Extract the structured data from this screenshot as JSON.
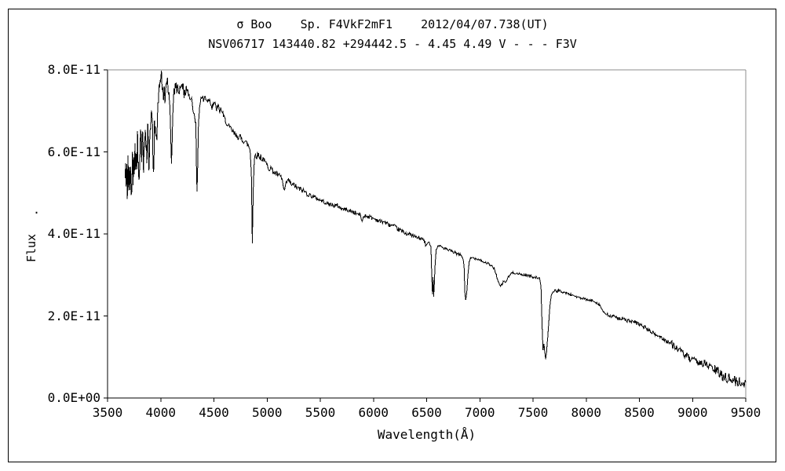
{
  "chart_data": {
    "type": "line",
    "title_line1": "σ Boo    Sp. F4VkF2mF1    2012/04/07.738(UT)",
    "title_line2": "NSV06717 143440.82 +294442.5 - 4.45 4.49 V - - - F3V",
    "xlabel": "Wavelength(Å)",
    "ylabel": "Flux",
    "ylabel_dot": ".",
    "xlim": [
      3500,
      9500
    ],
    "ylim": [
      0,
      8
    ],
    "grid": false,
    "legend": "none",
    "line_color": "#000000",
    "frame_color": "#000000",
    "frame_light_color": "#8c8c8c",
    "background_color": "#ffffff",
    "x_ticks": [
      {
        "value": 3500,
        "label": "3500"
      },
      {
        "value": 4000,
        "label": "4000"
      },
      {
        "value": 4500,
        "label": "4500"
      },
      {
        "value": 5000,
        "label": "5000"
      },
      {
        "value": 5500,
        "label": "5500"
      },
      {
        "value": 6000,
        "label": "6000"
      },
      {
        "value": 6500,
        "label": "6500"
      },
      {
        "value": 7000,
        "label": "7000"
      },
      {
        "value": 7500,
        "label": "7500"
      },
      {
        "value": 8000,
        "label": "8000"
      },
      {
        "value": 8500,
        "label": "8500"
      },
      {
        "value": 9000,
        "label": "9000"
      },
      {
        "value": 9500,
        "label": "9500"
      }
    ],
    "y_ticks": [
      {
        "value": 0,
        "label": "0.0E+00"
      },
      {
        "value": 2,
        "label": "2.0E-11"
      },
      {
        "value": 4,
        "label": "4.0E-11"
      },
      {
        "value": 6,
        "label": "6.0E-11"
      },
      {
        "value": 8,
        "label": "8.0E-11"
      }
    ],
    "noise_bands": [
      {
        "from": 3660,
        "to": 3965,
        "amp": 0.3
      },
      {
        "from": 3965,
        "to": 4350,
        "amp": 0.12
      },
      {
        "from": 4350,
        "to": 4900,
        "amp": 0.08
      },
      {
        "from": 4900,
        "to": 5400,
        "amp": 0.07
      },
      {
        "from": 5400,
        "to": 6500,
        "amp": 0.05
      },
      {
        "from": 6500,
        "to": 7600,
        "amp": 0.03
      },
      {
        "from": 7600,
        "to": 8200,
        "amp": 0.03
      },
      {
        "from": 8200,
        "to": 8800,
        "amp": 0.05
      },
      {
        "from": 8800,
        "to": 9200,
        "amp": 0.09
      },
      {
        "from": 9200,
        "to": 9505,
        "amp": 0.13
      }
    ],
    "spectrum_units": {
      "x": "Angstrom",
      "y": "flux x 1e-11"
    },
    "spectrum": [
      [
        3665,
        5.3
      ],
      [
        3670,
        5.75
      ],
      [
        3675,
        4.95
      ],
      [
        3680,
        5.6
      ],
      [
        3686,
        5.05
      ],
      [
        3692,
        5.9
      ],
      [
        3698,
        5.2
      ],
      [
        3704,
        5.55
      ],
      [
        3710,
        4.85
      ],
      [
        3716,
        5.65
      ],
      [
        3722,
        5.1
      ],
      [
        3728,
        4.8
      ],
      [
        3734,
        5.85
      ],
      [
        3740,
        5.3
      ],
      [
        3746,
        6.05
      ],
      [
        3752,
        5.45
      ],
      [
        3758,
        6.1
      ],
      [
        3764,
        5.5
      ],
      [
        3770,
        6.25
      ],
      [
        3776,
        5.6
      ],
      [
        3782,
        6.3
      ],
      [
        3790,
        5.7
      ],
      [
        3798,
        5.5
      ],
      [
        3806,
        6.3
      ],
      [
        3814,
        6.45
      ],
      [
        3822,
        5.95
      ],
      [
        3830,
        6.5
      ],
      [
        3838,
        5.6
      ],
      [
        3846,
        6.35
      ],
      [
        3854,
        6.5
      ],
      [
        3862,
        6.25
      ],
      [
        3870,
        5.9
      ],
      [
        3878,
        6.55
      ],
      [
        3889,
        5.55
      ],
      [
        3898,
        6.6
      ],
      [
        3906,
        6.8
      ],
      [
        3914,
        6.9
      ],
      [
        3922,
        6.55
      ],
      [
        3933,
        5.25
      ],
      [
        3941,
        6.5
      ],
      [
        3949,
        6.85
      ],
      [
        3957,
        6.5
      ],
      [
        3964,
        6.3
      ],
      [
        3970,
        6.9
      ],
      [
        3978,
        7.3
      ],
      [
        3986,
        7.55
      ],
      [
        3994,
        7.7
      ],
      [
        4002,
        7.85
      ],
      [
        4007,
        7.9
      ],
      [
        4013,
        7.6
      ],
      [
        4020,
        7.45
      ],
      [
        4026,
        7.25
      ],
      [
        4033,
        7.5
      ],
      [
        4040,
        7.2
      ],
      [
        4048,
        7.6
      ],
      [
        4056,
        7.7
      ],
      [
        4063,
        7.75
      ],
      [
        4070,
        7.5
      ],
      [
        4078,
        7.35
      ],
      [
        4086,
        7.0
      ],
      [
        4094,
        6.4
      ],
      [
        4101,
        5.7
      ],
      [
        4109,
        6.5
      ],
      [
        4117,
        7.15
      ],
      [
        4125,
        7.45
      ],
      [
        4133,
        7.55
      ],
      [
        4141,
        7.65
      ],
      [
        4150,
        7.5
      ],
      [
        4160,
        7.6
      ],
      [
        4170,
        7.45
      ],
      [
        4180,
        7.55
      ],
      [
        4190,
        7.65
      ],
      [
        4200,
        7.55
      ],
      [
        4210,
        7.6
      ],
      [
        4220,
        7.4
      ],
      [
        4230,
        7.45
      ],
      [
        4240,
        7.55
      ],
      [
        4250,
        7.4
      ],
      [
        4260,
        7.45
      ],
      [
        4272,
        7.3
      ],
      [
        4284,
        7.4
      ],
      [
        4296,
        7.15
      ],
      [
        4308,
        7.0
      ],
      [
        4320,
        6.95
      ],
      [
        4330,
        6.6
      ],
      [
        4336,
        5.6
      ],
      [
        4341,
        4.92
      ],
      [
        4347,
        5.7
      ],
      [
        4355,
        6.7
      ],
      [
        4365,
        7.1
      ],
      [
        4378,
        7.3
      ],
      [
        4390,
        7.35
      ],
      [
        4402,
        7.25
      ],
      [
        4415,
        7.35
      ],
      [
        4428,
        7.3
      ],
      [
        4440,
        7.25
      ],
      [
        4455,
        7.3
      ],
      [
        4470,
        7.2
      ],
      [
        4482,
        7.1
      ],
      [
        4495,
        7.2
      ],
      [
        4510,
        7.15
      ],
      [
        4525,
        7.05
      ],
      [
        4540,
        7.1
      ],
      [
        4555,
        7.0
      ],
      [
        4570,
        7.05
      ],
      [
        4585,
        6.9
      ],
      [
        4600,
        6.8
      ],
      [
        4615,
        6.75
      ],
      [
        4630,
        6.6
      ],
      [
        4645,
        6.6
      ],
      [
        4660,
        6.55
      ],
      [
        4675,
        6.5
      ],
      [
        4690,
        6.45
      ],
      [
        4705,
        6.4
      ],
      [
        4720,
        6.4
      ],
      [
        4735,
        6.35
      ],
      [
        4750,
        6.35
      ],
      [
        4765,
        6.3
      ],
      [
        4780,
        6.28
      ],
      [
        4795,
        6.25
      ],
      [
        4810,
        6.2
      ],
      [
        4825,
        6.15
      ],
      [
        4840,
        6.05
      ],
      [
        4852,
        5.5
      ],
      [
        4861,
        3.83
      ],
      [
        4870,
        5.1
      ],
      [
        4880,
        5.8
      ],
      [
        4890,
        5.95
      ],
      [
        4902,
        5.9
      ],
      [
        4915,
        5.95
      ],
      [
        4928,
        5.85
      ],
      [
        4940,
        5.9
      ],
      [
        4952,
        5.8
      ],
      [
        4965,
        5.85
      ],
      [
        4978,
        5.75
      ],
      [
        4990,
        5.72
      ],
      [
        5005,
        5.65
      ],
      [
        5020,
        5.6
      ],
      [
        5035,
        5.62
      ],
      [
        5050,
        5.55
      ],
      [
        5065,
        5.5
      ],
      [
        5080,
        5.48
      ],
      [
        5095,
        5.45
      ],
      [
        5110,
        5.42
      ],
      [
        5125,
        5.4
      ],
      [
        5140,
        5.35
      ],
      [
        5155,
        5.1
      ],
      [
        5168,
        5.05
      ],
      [
        5180,
        5.25
      ],
      [
        5195,
        5.3
      ],
      [
        5210,
        5.28
      ],
      [
        5225,
        5.22
      ],
      [
        5240,
        5.18
      ],
      [
        5255,
        5.2
      ],
      [
        5270,
        5.15
      ],
      [
        5285,
        5.12
      ],
      [
        5300,
        5.1
      ],
      [
        5320,
        5.08
      ],
      [
        5340,
        5.05
      ],
      [
        5360,
        5.02
      ],
      [
        5380,
        4.98
      ],
      [
        5400,
        4.95
      ],
      [
        5420,
        4.92
      ],
      [
        5440,
        4.9
      ],
      [
        5460,
        4.88
      ],
      [
        5480,
        4.85
      ],
      [
        5500,
        4.82
      ],
      [
        5520,
        4.8
      ],
      [
        5540,
        4.78
      ],
      [
        5560,
        4.75
      ],
      [
        5580,
        4.72
      ],
      [
        5600,
        4.72
      ],
      [
        5620,
        4.7
      ],
      [
        5640,
        4.68
      ],
      [
        5660,
        4.7
      ],
      [
        5680,
        4.65
      ],
      [
        5700,
        4.62
      ],
      [
        5720,
        4.6
      ],
      [
        5740,
        4.6
      ],
      [
        5760,
        4.58
      ],
      [
        5780,
        4.55
      ],
      [
        5800,
        4.55
      ],
      [
        5820,
        4.52
      ],
      [
        5840,
        4.5
      ],
      [
        5860,
        4.48
      ],
      [
        5880,
        4.45
      ],
      [
        5893,
        4.28
      ],
      [
        5905,
        4.42
      ],
      [
        5920,
        4.45
      ],
      [
        5940,
        4.43
      ],
      [
        5960,
        4.42
      ],
      [
        5980,
        4.4
      ],
      [
        6000,
        4.38
      ],
      [
        6025,
        4.35
      ],
      [
        6050,
        4.32
      ],
      [
        6075,
        4.3
      ],
      [
        6100,
        4.3
      ],
      [
        6125,
        4.25
      ],
      [
        6150,
        4.22
      ],
      [
        6175,
        4.2
      ],
      [
        6200,
        4.18
      ],
      [
        6225,
        4.12
      ],
      [
        6250,
        4.1
      ],
      [
        6275,
        4.05
      ],
      [
        6300,
        4.02
      ],
      [
        6325,
        4.0
      ],
      [
        6350,
        3.98
      ],
      [
        6375,
        3.95
      ],
      [
        6400,
        3.92
      ],
      [
        6425,
        3.9
      ],
      [
        6450,
        3.88
      ],
      [
        6475,
        3.85
      ],
      [
        6495,
        3.7
      ],
      [
        6510,
        3.78
      ],
      [
        6525,
        3.78
      ],
      [
        6540,
        3.72
      ],
      [
        6549,
        2.9
      ],
      [
        6555,
        2.55
      ],
      [
        6560,
        2.95
      ],
      [
        6566,
        2.5
      ],
      [
        6572,
        2.75
      ],
      [
        6580,
        3.3
      ],
      [
        6590,
        3.6
      ],
      [
        6600,
        3.68
      ],
      [
        6615,
        3.72
      ],
      [
        6630,
        3.7
      ],
      [
        6645,
        3.68
      ],
      [
        6660,
        3.65
      ],
      [
        6675,
        3.65
      ],
      [
        6690,
        3.62
      ],
      [
        6705,
        3.6
      ],
      [
        6720,
        3.6
      ],
      [
        6735,
        3.58
      ],
      [
        6750,
        3.55
      ],
      [
        6765,
        3.55
      ],
      [
        6780,
        3.52
      ],
      [
        6795,
        3.5
      ],
      [
        6810,
        3.5
      ],
      [
        6825,
        3.48
      ],
      [
        6840,
        3.42
      ],
      [
        6852,
        3.2
      ],
      [
        6860,
        2.55
      ],
      [
        6867,
        2.4
      ],
      [
        6874,
        2.5
      ],
      [
        6882,
        2.75
      ],
      [
        6890,
        3.05
      ],
      [
        6900,
        3.3
      ],
      [
        6912,
        3.4
      ],
      [
        6925,
        3.42
      ],
      [
        6940,
        3.42
      ],
      [
        6955,
        3.4
      ],
      [
        6970,
        3.4
      ],
      [
        6985,
        3.38
      ],
      [
        7000,
        3.38
      ],
      [
        7015,
        3.35
      ],
      [
        7030,
        3.32
      ],
      [
        7045,
        3.3
      ],
      [
        7060,
        3.3
      ],
      [
        7075,
        3.28
      ],
      [
        7090,
        3.25
      ],
      [
        7105,
        3.22
      ],
      [
        7120,
        3.2
      ],
      [
        7135,
        3.15
      ],
      [
        7150,
        3.05
      ],
      [
        7165,
        2.9
      ],
      [
        7180,
        2.78
      ],
      [
        7195,
        2.72
      ],
      [
        7210,
        2.78
      ],
      [
        7225,
        2.85
      ],
      [
        7240,
        2.82
      ],
      [
        7255,
        2.88
      ],
      [
        7270,
        2.95
      ],
      [
        7285,
        3.0
      ],
      [
        7300,
        3.05
      ],
      [
        7320,
        3.05
      ],
      [
        7340,
        3.05
      ],
      [
        7360,
        3.02
      ],
      [
        7380,
        3.02
      ],
      [
        7400,
        3.0
      ],
      [
        7420,
        3.0
      ],
      [
        7440,
        3.0
      ],
      [
        7460,
        2.98
      ],
      [
        7480,
        2.97
      ],
      [
        7500,
        2.95
      ],
      [
        7520,
        2.95
      ],
      [
        7540,
        2.93
      ],
      [
        7560,
        2.92
      ],
      [
        7575,
        2.7
      ],
      [
        7585,
        1.8
      ],
      [
        7594,
        1.15
      ],
      [
        7602,
        1.35
      ],
      [
        7610,
        1.1
      ],
      [
        7618,
        0.96
      ],
      [
        7628,
        1.15
      ],
      [
        7638,
        1.45
      ],
      [
        7648,
        1.85
      ],
      [
        7658,
        2.2
      ],
      [
        7668,
        2.45
      ],
      [
        7678,
        2.55
      ],
      [
        7690,
        2.6
      ],
      [
        7705,
        2.62
      ],
      [
        7720,
        2.6
      ],
      [
        7740,
        2.62
      ],
      [
        7760,
        2.6
      ],
      [
        7780,
        2.58
      ],
      [
        7800,
        2.57
      ],
      [
        7820,
        2.55
      ],
      [
        7840,
        2.53
      ],
      [
        7860,
        2.52
      ],
      [
        7880,
        2.5
      ],
      [
        7900,
        2.48
      ],
      [
        7925,
        2.45
      ],
      [
        7950,
        2.43
      ],
      [
        7975,
        2.42
      ],
      [
        8000,
        2.4
      ],
      [
        8025,
        2.38
      ],
      [
        8050,
        2.37
      ],
      [
        8075,
        2.36
      ],
      [
        8100,
        2.32
      ],
      [
        8125,
        2.28
      ],
      [
        8150,
        2.15
      ],
      [
        8175,
        2.05
      ],
      [
        8200,
        2.02
      ],
      [
        8225,
        2.0
      ],
      [
        8250,
        1.98
      ],
      [
        8275,
        1.97
      ],
      [
        8300,
        1.96
      ],
      [
        8325,
        1.94
      ],
      [
        8350,
        1.92
      ],
      [
        8375,
        1.9
      ],
      [
        8400,
        1.88
      ],
      [
        8425,
        1.86
      ],
      [
        8450,
        1.84
      ],
      [
        8475,
        1.82
      ],
      [
        8500,
        1.8
      ],
      [
        8525,
        1.76
      ],
      [
        8550,
        1.72
      ],
      [
        8575,
        1.68
      ],
      [
        8600,
        1.63
      ],
      [
        8630,
        1.58
      ],
      [
        8660,
        1.53
      ],
      [
        8690,
        1.5
      ],
      [
        8720,
        1.45
      ],
      [
        8750,
        1.4
      ],
      [
        8780,
        1.35
      ],
      [
        8810,
        1.3
      ],
      [
        8840,
        1.25
      ],
      [
        8870,
        1.18
      ],
      [
        8900,
        1.1
      ],
      [
        8930,
        1.05
      ],
      [
        8960,
        0.98
      ],
      [
        8990,
        0.92
      ],
      [
        9020,
        0.9
      ],
      [
        9050,
        0.88
      ],
      [
        9080,
        0.86
      ],
      [
        9110,
        0.84
      ],
      [
        9140,
        0.8
      ],
      [
        9170,
        0.75
      ],
      [
        9200,
        0.7
      ],
      [
        9230,
        0.65
      ],
      [
        9260,
        0.58
      ],
      [
        9290,
        0.54
      ],
      [
        9320,
        0.5
      ],
      [
        9350,
        0.46
      ],
      [
        9380,
        0.43
      ],
      [
        9410,
        0.4
      ],
      [
        9440,
        0.38
      ],
      [
        9470,
        0.36
      ],
      [
        9500,
        0.38
      ]
    ]
  }
}
